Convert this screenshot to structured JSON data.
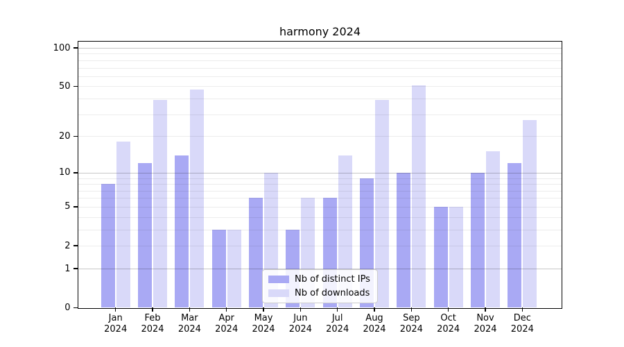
{
  "title": "harmony 2024",
  "legend": {
    "items": [
      {
        "label": "Nb of distinct IPs",
        "color": "#a9a9f4"
      },
      {
        "label": "Nb of downloads",
        "color": "#d9d9f9"
      }
    ]
  },
  "y_axis": {
    "tick_labels": [
      "0",
      "1",
      "2",
      "5",
      "10",
      "20",
      "50",
      "100"
    ]
  },
  "x_axis": {
    "months": [
      "Jan",
      "Feb",
      "Mar",
      "Apr",
      "May",
      "Jun",
      "Jul",
      "Aug",
      "Sep",
      "Oct",
      "Nov",
      "Dec"
    ],
    "year": "2024"
  },
  "chart_data": {
    "type": "bar",
    "title": "harmony 2024",
    "categories": [
      "Jan 2024",
      "Feb 2024",
      "Mar 2024",
      "Apr 2024",
      "May 2024",
      "Jun 2024",
      "Jul 2024",
      "Aug 2024",
      "Sep 2024",
      "Oct 2024",
      "Nov 2024",
      "Dec 2024"
    ],
    "series": [
      {
        "name": "Nb of distinct IPs",
        "color": "#a9a9f4",
        "values": [
          8,
          12,
          14,
          3,
          6,
          3,
          6,
          9,
          10,
          5,
          10,
          12
        ]
      },
      {
        "name": "Nb of downloads",
        "color": "#d9d9f9",
        "values": [
          18,
          39,
          47,
          3,
          10,
          6,
          14,
          39,
          51,
          5,
          15,
          27
        ]
      }
    ],
    "xlabel": "",
    "ylabel": "",
    "y_scale": "log10(1+value)",
    "y_ticks": [
      0,
      1,
      2,
      5,
      10,
      20,
      50,
      100
    ],
    "y_major_gridlines": [
      1,
      10,
      100
    ],
    "y_minor_gridlines": [
      2,
      3,
      4,
      5,
      6,
      7,
      8,
      9,
      20,
      30,
      40,
      50,
      60,
      70,
      80,
      90
    ],
    "ylim": [
      0,
      113
    ],
    "grid": "on",
    "legend_position": "inside-bottom-center",
    "bar_layout": "grouped-pairs"
  }
}
